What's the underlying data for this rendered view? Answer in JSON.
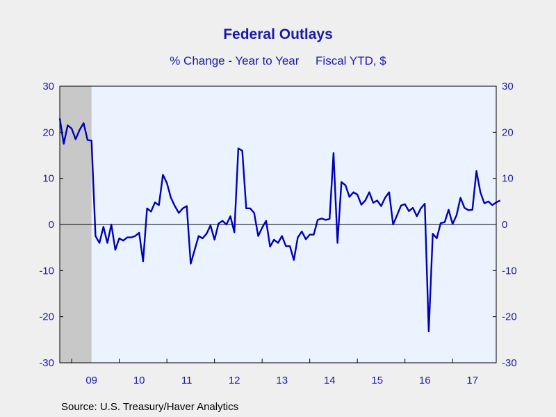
{
  "chart_data": {
    "type": "line",
    "title": "Federal Outlays",
    "subtitle_left": "% Change - Year to Year",
    "subtitle_right": "Fiscal YTD, $",
    "source": "Source:  U.S. Treasury/Haver Analytics",
    "ylim": [
      -30,
      30
    ],
    "y_ticks": [
      30,
      20,
      10,
      0,
      -10,
      -20,
      -30
    ],
    "x_range": [
      "2008-10",
      "2017-12"
    ],
    "x_tick_labels": [
      {
        "label": "09",
        "date": "2009-06"
      },
      {
        "label": "10",
        "date": "2010-06"
      },
      {
        "label": "11",
        "date": "2011-06"
      },
      {
        "label": "12",
        "date": "2012-06"
      },
      {
        "label": "13",
        "date": "2013-06"
      },
      {
        "label": "14",
        "date": "2014-06"
      },
      {
        "label": "15",
        "date": "2015-06"
      },
      {
        "label": "16",
        "date": "2016-06"
      },
      {
        "label": "17",
        "date": "2017-06"
      }
    ],
    "recession": {
      "start": "2008-10",
      "end": "2009-06"
    },
    "colors": {
      "line": "#0000b4",
      "plot_bg": "#eaf3ff",
      "recession": "#c8c8c8",
      "text": "#1a1aa8"
    },
    "series": [
      {
        "start": "2008-10",
        "values": [
          23,
          17.5,
          21.5,
          20.8,
          18.5,
          20.5,
          22,
          18.3,
          18.2,
          -2.5,
          -4,
          -0.5,
          -4,
          0,
          -5.5,
          -3,
          -3.5,
          -2.8,
          -2.8,
          -2.5,
          -1.8,
          -8,
          3.5,
          2.8,
          4.8,
          4.2,
          10.8,
          9,
          5.8,
          4,
          2.5,
          3.5,
          4,
          -8.5,
          -5.5,
          -2.5,
          -3,
          -2,
          -0.2,
          -3.3,
          0.2,
          0.8,
          0,
          1.8,
          -1.7,
          16.5,
          16,
          3.5,
          3.5,
          2.5,
          -2.5,
          -0.7,
          0.8,
          -4.8,
          -3.3,
          -4,
          -2.5,
          -4.7,
          -4.7,
          -7.7,
          -2.8,
          -1.5,
          -3.2,
          -2.2,
          -2.2,
          1,
          1.3,
          1,
          1.2,
          15.5,
          -4,
          9.2,
          8.5,
          6,
          7,
          6.5,
          4.3,
          5.2,
          7,
          4.7,
          5.2,
          4,
          5.8,
          7,
          0,
          2,
          4.1,
          4.4,
          2.9,
          3.6,
          1.8,
          3.5,
          4.5,
          -23.2,
          -2,
          -3,
          0.3,
          0.5,
          3.2,
          0.1,
          2,
          5.8,
          3.6,
          3.1,
          3.2,
          11.6,
          7,
          4.6,
          5,
          4.2,
          4.8,
          5.2
        ]
      }
    ]
  }
}
